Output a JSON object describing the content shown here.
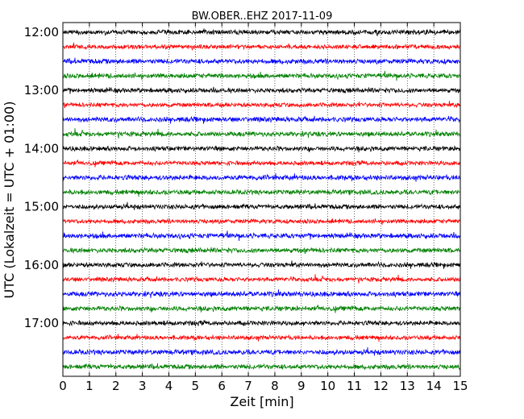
{
  "chart_data": {
    "type": "line",
    "title": "BW.OBER..EHZ 2017-11-09",
    "xlabel": "Zeit  [min]",
    "ylabel": "UTC (Lokalzeit = UTC + 01:00)",
    "xlim": [
      0,
      15
    ],
    "x_ticks": [
      0,
      1,
      2,
      3,
      4,
      5,
      6,
      7,
      8,
      9,
      10,
      11,
      12,
      13,
      14,
      15
    ],
    "x_tick_labels": [
      "0",
      "1",
      "2",
      "3",
      "4",
      "5",
      "6",
      "7",
      "8",
      "9",
      "10",
      "11",
      "12",
      "13",
      "14",
      "15"
    ],
    "y_tick_labels": [
      "12:00",
      "13:00",
      "14:00",
      "15:00",
      "16:00",
      "17:00"
    ],
    "y_tick_rows": [
      0,
      4,
      8,
      12,
      16,
      20
    ],
    "grid": "vertical dotted lines at each minute",
    "trace_interval_minutes": 15,
    "color_cycle": [
      "#000000",
      "#ff0000",
      "#0000ff",
      "#008000"
    ],
    "traces": [
      {
        "start": "12:00"
      },
      {
        "start": "12:15"
      },
      {
        "start": "12:30"
      },
      {
        "start": "12:45"
      },
      {
        "start": "13:00"
      },
      {
        "start": "13:15"
      },
      {
        "start": "13:30"
      },
      {
        "start": "13:45"
      },
      {
        "start": "14:00"
      },
      {
        "start": "14:15"
      },
      {
        "start": "14:30"
      },
      {
        "start": "14:45"
      },
      {
        "start": "15:00"
      },
      {
        "start": "15:15"
      },
      {
        "start": "15:30"
      },
      {
        "start": "15:45"
      },
      {
        "start": "16:00"
      },
      {
        "start": "16:15"
      },
      {
        "start": "16:30"
      },
      {
        "start": "16:45"
      },
      {
        "start": "17:00"
      },
      {
        "start": "17:15"
      },
      {
        "start": "17:30"
      },
      {
        "start": "17:45"
      }
    ]
  }
}
